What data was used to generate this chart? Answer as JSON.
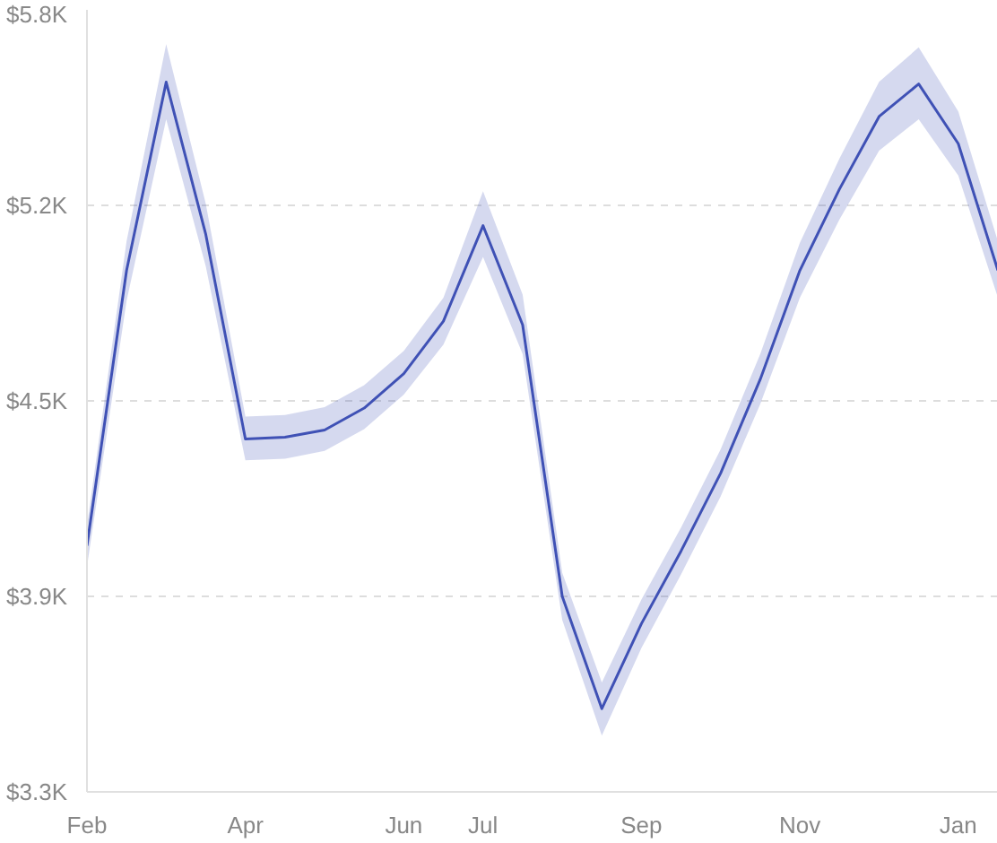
{
  "chart_data": {
    "type": "line",
    "categories": [
      "Feb",
      null,
      null,
      null,
      "Apr",
      null,
      null,
      null,
      "Jun",
      null,
      "Jul",
      null,
      null,
      null,
      "Sep",
      null,
      null,
      null,
      "Nov",
      null,
      null,
      null,
      "Jan",
      null
    ],
    "series": [
      {
        "color": "#3f51b5",
        "values": [
          4087,
          4967,
          5569,
          5082,
          4428,
          4434,
          4457,
          4527,
          4637,
          4805,
          5110,
          4793,
          3925,
          3566,
          3838,
          4070,
          4319,
          4619,
          4967,
          5227,
          5459,
          5563,
          5372,
          4967
        ],
        "lower": [
          4020,
          4870,
          5450,
          4980,
          4360,
          4365,
          4390,
          4460,
          4570,
          4730,
          5010,
          4700,
          3850,
          3480,
          3760,
          3995,
          4245,
          4540,
          4880,
          5130,
          5350,
          5450,
          5270,
          4880
        ],
        "upper": [
          4150,
          5060,
          5690,
          5180,
          4500,
          4505,
          4530,
          4600,
          4710,
          4880,
          5220,
          4890,
          4000,
          3650,
          3915,
          4145,
          4395,
          4700,
          5055,
          5325,
          5570,
          5680,
          5475,
          5060
        ]
      }
    ],
    "ylim": [
      3300,
      5800
    ],
    "yticks": [
      {
        "value": 3300,
        "label": "$3.3K"
      },
      {
        "value": 3925,
        "label": "$3.9K"
      },
      {
        "value": 4550,
        "label": "$4.5K"
      },
      {
        "value": 5175,
        "label": "$5.2K"
      },
      {
        "value": 5800,
        "label": "$5.8K"
      }
    ],
    "grid": "y",
    "marker": "none",
    "line_style": "solid"
  }
}
